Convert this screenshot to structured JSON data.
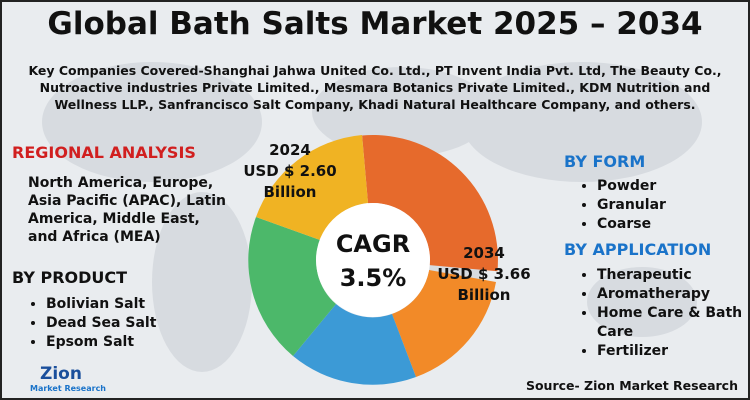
{
  "header": {
    "title": "Global Bath Salts Market 2025 – 2034",
    "companies": "Key Companies Covered-Shanghai Jahwa United Co. Ltd., PT Invent India Pvt. Ltd, The Beauty Co., Nutroactive industries Private Limited., Mesmara Botanics Private Limited., KDM Nutrition and Wellness LLP., Sanfrancisco Salt Company, Khadi Natural Healthcare Company, and others."
  },
  "regional": {
    "heading": "REGIONAL ANALYSIS",
    "text": "North America, Europe, Asia Pacific (APAC), Latin America, Middle East, and Africa (MEA)"
  },
  "by_product": {
    "heading": "BY PRODUCT",
    "items": [
      "Bolivian Salt",
      "Dead Sea Salt",
      "Epsom Salt"
    ]
  },
  "center": {
    "cagr_label": "CAGR",
    "cagr_value": "3.5%",
    "start": {
      "year": "2024",
      "value": "USD $ 2.60",
      "unit": "Billion"
    },
    "end": {
      "year": "2034",
      "value": "USD $ 3.66",
      "unit": "Billion"
    }
  },
  "by_form": {
    "heading": "BY FORM",
    "items": [
      "Powder",
      "Granular",
      "Coarse"
    ]
  },
  "by_application": {
    "heading": "BY APPLICATION",
    "items": [
      "Therapeutic",
      "Aromatherapy",
      "Home Care & Bath Care",
      "Fertilizer"
    ]
  },
  "logo": {
    "name": "Zion",
    "sub": "Market Research"
  },
  "source": "Source- Zion Market Research"
}
